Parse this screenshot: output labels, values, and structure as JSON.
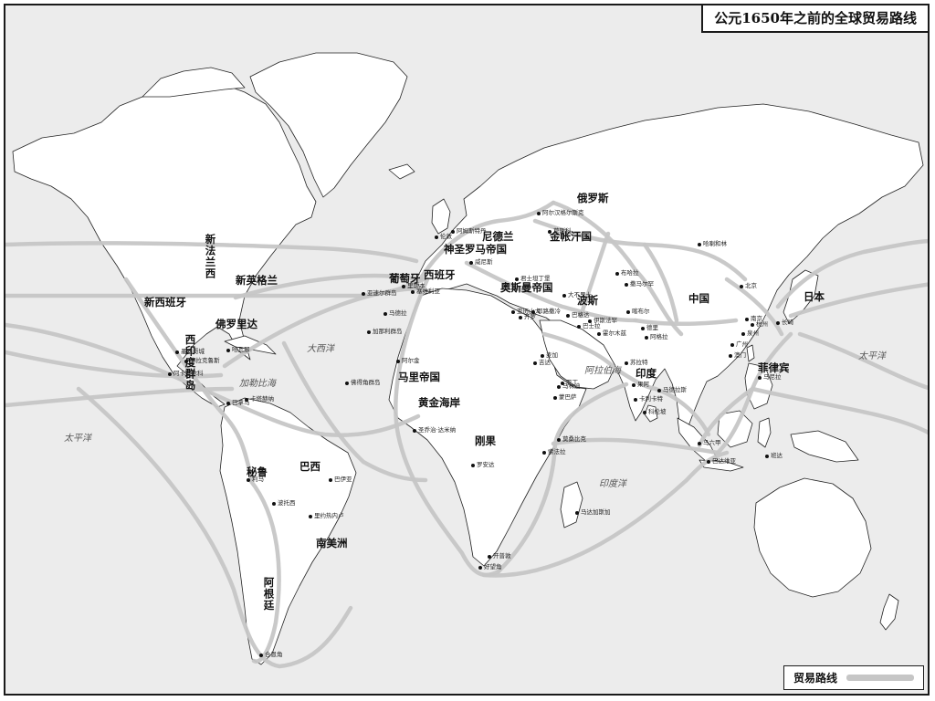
{
  "title": "公元1650年之前的全球贸易路线",
  "legend": {
    "label": "贸易路线",
    "route_color": "#c6c6c6"
  },
  "colors": {
    "land": "#ffffff",
    "sea": "#ececec",
    "coast": "#222222",
    "route": "#c6c6c6"
  },
  "labels": {
    "new_france": "新法兰西",
    "new_england": "新英格兰",
    "new_spain": "新西班牙",
    "florida": "佛罗里达",
    "west_indies": "西印度群岛",
    "portugal": "葡萄牙",
    "spain": "西班牙",
    "netherlands": "尼德兰",
    "holy_roman_empire": "神圣罗马帝国",
    "ottoman_empire": "奥斯曼帝国",
    "persia": "波斯",
    "russia": "俄罗斯",
    "golden_horde": "金帐汗国",
    "china": "中国",
    "japan": "日本",
    "philippines": "菲律宾",
    "india": "印度",
    "mali_empire": "马里帝国",
    "gold_coast": "黄金海岸",
    "congo": "刚果",
    "peru": "秘鲁",
    "brazil": "巴西",
    "south_america": "南美洲",
    "argentina": "阿根廷",
    "pacific_west": "太平洋",
    "pacific_east": "太平洋",
    "atlantic": "大西洋",
    "indian_ocean": "印度洋",
    "caribbean": "加勒比海",
    "arabian_sea": "阿拉伯海"
  },
  "cities": {
    "archangel": "阿尔汉格尔斯克",
    "london": "伦敦",
    "amsterdam": "阿姆斯特丹",
    "venice": "威尼斯",
    "constantinople": "君士坦丁堡",
    "moscow": "莫斯科",
    "lisbon": "里斯本",
    "seville": "塞维利亚",
    "azores": "亚速尔群岛",
    "madeira": "马德拉",
    "canaries": "加那利群岛",
    "cape_verde": "佛得角群岛",
    "arguin": "阿尔金",
    "elmina": "圣乔治·达米纳",
    "luanda": "罗安达",
    "cape_good_hope": "好望角",
    "cape_town": "开普敦",
    "sofala": "索法拉",
    "mozambique": "莫桑比克",
    "madagascar": "马达加斯加",
    "mombasa": "蒙巴萨",
    "malindi": "马林迪",
    "aden": "亚丁",
    "mecca": "麦加",
    "jeddah": "吉达",
    "cairo": "开罗",
    "alexandria": "亚历山大",
    "jerusalem": "耶路撒冷",
    "baghdad": "巴格达",
    "basra": "巴士拉",
    "hormuz": "霍尔木兹",
    "isfahan": "伊斯法罕",
    "tabriz": "大不里士",
    "bukhara": "布哈拉",
    "samarkand": "撒马尔罕",
    "kabul": "喀布尔",
    "delhi": "德里",
    "agra": "阿格拉",
    "surat": "苏拉特",
    "goa": "果阿",
    "calicut": "卡利卡特",
    "colombo": "科伦坡",
    "madras": "马德拉斯",
    "malacca": "马六甲",
    "batavia": "巴达维亚",
    "banda": "班达",
    "manila": "马尼拉",
    "canton": "广州",
    "macau": "澳门",
    "quanzhou": "泉州",
    "hangzhou": "杭州",
    "nanjing": "南京",
    "beijing": "北京",
    "nagasaki": "长崎",
    "karakorum": "哈喇和林",
    "havana": "哈瓦那",
    "veracruz": "韦拉克鲁斯",
    "mexico_city": "墨西哥城",
    "acapulco": "阿卡普尔科",
    "panama": "巴拿马",
    "cartagena": "卡塔赫纳",
    "lima": "利马",
    "potosi": "波托西",
    "bahia": "巴伊亚",
    "rio": "里约热内卢",
    "cape_horn": "合恩角"
  }
}
